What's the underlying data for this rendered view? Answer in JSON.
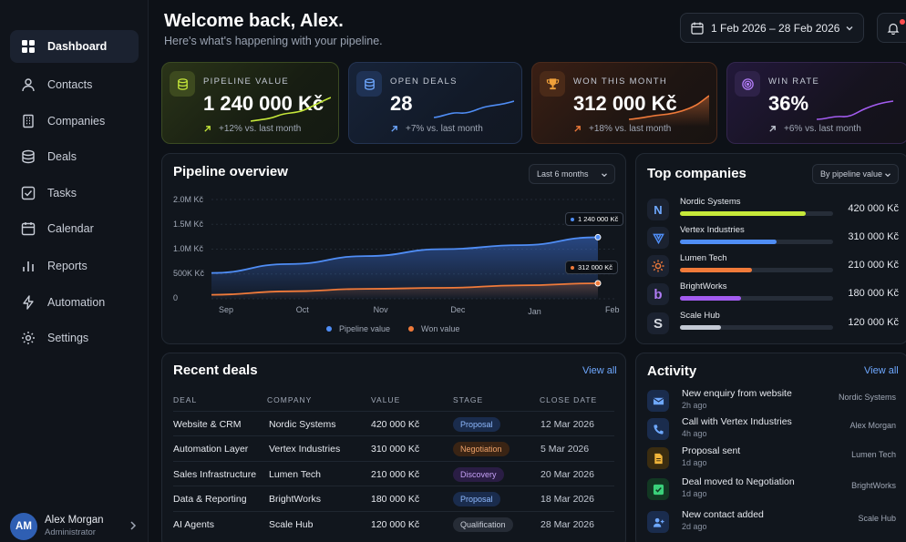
{
  "sidebar": {
    "items": [
      {
        "label": "Dashboard",
        "icon": "grid-icon"
      },
      {
        "label": "Contacts",
        "icon": "user-icon"
      },
      {
        "label": "Companies",
        "icon": "building-icon"
      },
      {
        "label": "Deals",
        "icon": "stack-icon"
      },
      {
        "label": "Tasks",
        "icon": "checkbox-icon"
      },
      {
        "label": "Calendar",
        "icon": "calendar-icon"
      },
      {
        "label": "Reports",
        "icon": "bar-chart-icon"
      },
      {
        "label": "Automation",
        "icon": "bolt-icon"
      },
      {
        "label": "Settings",
        "icon": "gear-icon"
      }
    ],
    "active": "Dashboard",
    "user": {
      "initials": "AM",
      "name": "Alex Morgan",
      "role": "Administrator"
    }
  },
  "header": {
    "title": "Welcome back, Alex.",
    "subtitle": "Here's what's happening with your pipeline.",
    "date_range": "1 Feb 2026 – 28 Feb 2026"
  },
  "stats": [
    {
      "label": "PIPELINE VALUE",
      "value": "1 240 000 Kč",
      "delta": "+12% vs. last month",
      "color": "#c6e83a",
      "icon": "coins-icon"
    },
    {
      "label": "OPEN DEALS",
      "value": "28",
      "delta": "+7% vs. last month",
      "color": "#4f8df5",
      "icon": "database-icon"
    },
    {
      "label": "WON THIS MONTH",
      "value": "312 000 Kč",
      "delta": "+18% vs. last month",
      "color": "#f07a3a",
      "icon": "trophy-icon"
    },
    {
      "label": "WIN RATE",
      "value": "36%",
      "delta": "+6% vs. last month",
      "color": "#a35cf0",
      "icon": "target-icon"
    }
  ],
  "pipeline_overview": {
    "title": "Pipeline overview",
    "range_select": "Last 6 months",
    "tooltips": {
      "pipeline": "1 240 000 Kč",
      "won": "312 000 Kč"
    }
  },
  "chart_data": {
    "type": "area",
    "x": [
      "Sep",
      "Oct",
      "Nov",
      "Dec",
      "Jan",
      "Feb"
    ],
    "ylim": [
      0,
      2000000
    ],
    "yticks": [
      "2.0M Kč",
      "1.5M Kč",
      "1.0M Kč",
      "500K Kč",
      "0"
    ],
    "grid": true,
    "legend_placement": "bottom",
    "series": [
      {
        "name": "Pipeline value",
        "color": "#4f8df5",
        "values": [
          520000,
          700000,
          860000,
          1000000,
          1080000,
          1240000
        ]
      },
      {
        "name": "Won value",
        "color": "#f07a3a",
        "values": [
          80000,
          150000,
          200000,
          220000,
          270000,
          312000
        ]
      }
    ]
  },
  "top_companies": {
    "title": "Top companies",
    "sort_select": "By pipeline value",
    "items": [
      {
        "name": "Nordic Systems",
        "value": "420 000 Kč",
        "share": 0.82,
        "color": "#c6e83a",
        "logo": "N",
        "icon": "n-logo-icon"
      },
      {
        "name": "Vertex Industries",
        "value": "310 000 Kč",
        "share": 0.63,
        "color": "#4f8df5",
        "logo": "",
        "icon": "triangle-logo-icon"
      },
      {
        "name": "Lumen Tech",
        "value": "210 000 Kč",
        "share": 0.47,
        "color": "#f07a3a",
        "logo": "",
        "icon": "sun-logo-icon"
      },
      {
        "name": "BrightWorks",
        "value": "180 000 Kč",
        "share": 0.4,
        "color": "#a35cf0",
        "logo": "b",
        "icon": "b-logo-icon"
      },
      {
        "name": "Scale Hub",
        "value": "120 000 Kč",
        "share": 0.27,
        "color": "#c3c9d4",
        "logo": "S",
        "icon": "s-logo-icon"
      }
    ]
  },
  "recent_deals": {
    "title": "Recent deals",
    "view_all": "View all",
    "columns": [
      "DEAL",
      "COMPANY",
      "VALUE",
      "STAGE",
      "CLOSE DATE"
    ],
    "rows": [
      {
        "deal": "Website & CRM",
        "company": "Nordic Systems",
        "value": "420 000 Kč",
        "stage": "Proposal",
        "date": "12 Mar 2026"
      },
      {
        "deal": "Automation Layer",
        "company": "Vertex Industries",
        "value": "310 000 Kč",
        "stage": "Negotiation",
        "date": "5 Mar 2026"
      },
      {
        "deal": "Sales Infrastructure",
        "company": "Lumen Tech",
        "value": "210 000 Kč",
        "stage": "Discovery",
        "date": "20 Mar 2026"
      },
      {
        "deal": "Data & Reporting",
        "company": "BrightWorks",
        "value": "180 000 Kč",
        "stage": "Proposal",
        "date": "18 Mar 2026"
      },
      {
        "deal": "AI Agents",
        "company": "Scale Hub",
        "value": "120 000 Kč",
        "stage": "Qualification",
        "date": "28 Mar 2026"
      }
    ]
  },
  "activity": {
    "title": "Activity",
    "view_all": "View all",
    "items": [
      {
        "title": "New enquiry from website",
        "time": "2h ago",
        "company": "Nordic Systems",
        "icon": "mail-icon",
        "color": "#4f8df5"
      },
      {
        "title": "Call with Vertex Industries",
        "time": "4h ago",
        "company": "Alex Morgan",
        "icon": "phone-icon",
        "color": "#4f8df5"
      },
      {
        "title": "Proposal sent",
        "time": "1d ago",
        "company": "Lumen Tech",
        "icon": "document-icon",
        "color": "#f0b43a"
      },
      {
        "title": "Deal moved to Negotiation",
        "time": "1d ago",
        "company": "BrightWorks",
        "icon": "check-icon",
        "color": "#3ad07a"
      },
      {
        "title": "New contact added",
        "time": "2d ago",
        "company": "Scale Hub",
        "icon": "user-plus-icon",
        "color": "#6ea8ff"
      }
    ]
  }
}
